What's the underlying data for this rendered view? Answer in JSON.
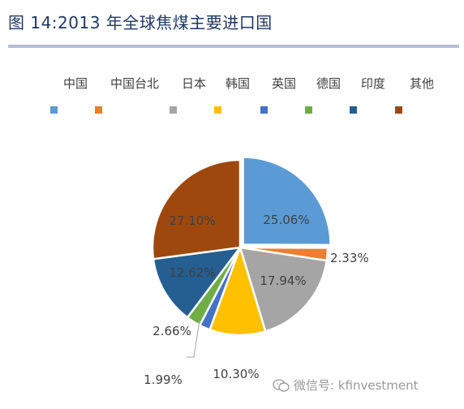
{
  "header": {
    "title": "图 14:2013 年全球焦煤主要进口国"
  },
  "watermark": {
    "text": "微信号: kfinvestment",
    "icon": "wechat-icon"
  },
  "chart_data": {
    "type": "pie",
    "title": "",
    "legend_position": "top",
    "categories": [
      "中国",
      "中国台北",
      "日本",
      "韩国",
      "英国",
      "德国",
      "印度",
      "其他"
    ],
    "values": [
      25.06,
      2.33,
      17.94,
      10.3,
      1.99,
      2.66,
      12.62,
      27.1
    ],
    "labels": [
      "25.06%",
      "2.33%",
      "17.94%",
      "10.30%",
      "1.99%",
      "2.66%",
      "12.62%",
      "27.10%"
    ],
    "colors": [
      "#5b9bd5",
      "#ed7d31",
      "#a5a5a5",
      "#ffc000",
      "#4472c4",
      "#70ad47",
      "#255e91",
      "#9e480e"
    ]
  }
}
